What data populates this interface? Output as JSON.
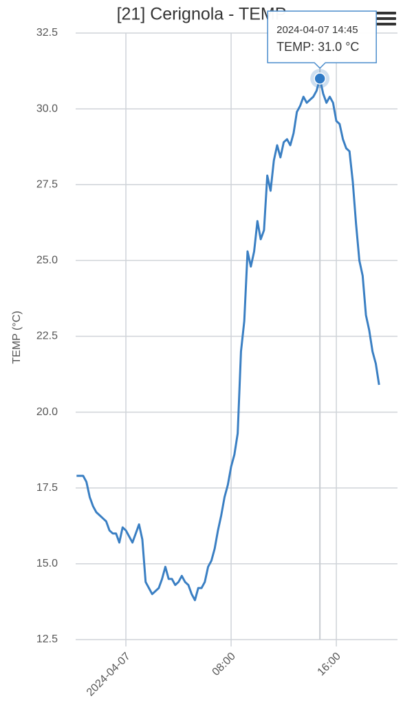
{
  "chart_data": {
    "type": "line",
    "title": "[21] Cerignola - TEMP",
    "y_label": "TEMP (°C)",
    "color": "#3a7fc3",
    "grid": true,
    "xlim": [
      -3.82,
      20.65
    ],
    "xticks": [
      {
        "value": 0,
        "label": "2024-04-07"
      },
      {
        "value": 8,
        "label": "08:00"
      },
      {
        "value": 16,
        "label": "16:00"
      }
    ],
    "ylim": [
      12.5,
      32.5
    ],
    "yticks": [
      12.5,
      {
        "value": 15,
        "label": "15.0"
      },
      17.5,
      {
        "value": 20,
        "label": "20.0"
      },
      22.5,
      {
        "value": 25,
        "label": "25.0"
      },
      27.5,
      {
        "value": 30,
        "label": "30.0"
      },
      32.5
    ],
    "x": [
      -3.75,
      -3.5,
      -3.25,
      -3,
      -2.75,
      -2.5,
      -2.25,
      -2,
      -1.75,
      -1.5,
      -1.25,
      -1,
      -0.75,
      -0.5,
      -0.25,
      0,
      0.25,
      0.5,
      0.75,
      1,
      1.25,
      1.5,
      1.75,
      2,
      2.25,
      2.5,
      2.75,
      3,
      3.25,
      3.5,
      3.75,
      4,
      4.25,
      4.5,
      4.75,
      5,
      5.25,
      5.5,
      5.75,
      6,
      6.25,
      6.5,
      6.75,
      7,
      7.25,
      7.5,
      7.75,
      8,
      8.25,
      8.5,
      8.75,
      9,
      9.25,
      9.5,
      9.75,
      10,
      10.25,
      10.5,
      10.75,
      11,
      11.25,
      11.5,
      11.75,
      12,
      12.25,
      12.5,
      12.75,
      13,
      13.25,
      13.5,
      13.75,
      14,
      14.25,
      14.5,
      14.75,
      15,
      15.25,
      15.5,
      15.75,
      16,
      16.25,
      16.5,
      16.75,
      17,
      17.25,
      17.5,
      17.75,
      18,
      18.25,
      18.5,
      18.75,
      19,
      19.25
    ],
    "values": [
      17.9,
      17.9,
      17.9,
      17.7,
      17.2,
      16.9,
      16.7,
      16.6,
      16.5,
      16.4,
      16.1,
      16.0,
      16.0,
      15.7,
      16.2,
      16.1,
      15.9,
      15.7,
      16.0,
      16.3,
      15.8,
      14.4,
      14.2,
      14.0,
      14.1,
      14.2,
      14.5,
      14.9,
      14.5,
      14.5,
      14.3,
      14.4,
      14.6,
      14.4,
      14.3,
      14.0,
      13.8,
      14.2,
      14.2,
      14.4,
      14.9,
      15.1,
      15.5,
      16.1,
      16.6,
      17.2,
      17.6,
      18.2,
      18.6,
      19.3,
      22.0,
      23.0,
      25.3,
      24.8,
      25.3,
      26.3,
      25.7,
      26.0,
      27.8,
      27.3,
      28.3,
      28.8,
      28.4,
      28.9,
      29.0,
      28.8,
      29.2,
      29.9,
      30.1,
      30.4,
      30.2,
      30.3,
      30.4,
      30.6,
      31.0,
      30.5,
      30.2,
      30.4,
      30.2,
      29.6,
      29.5,
      29.0,
      28.7,
      28.6,
      27.6,
      26.2,
      25.0,
      24.5,
      23.2,
      22.7,
      22.0,
      21.6,
      20.9
    ],
    "tooltip": {
      "title": "2024-04-07 14:45",
      "label": "TEMP: 31.0 °C",
      "x": 14.75,
      "y": 31.0
    }
  }
}
